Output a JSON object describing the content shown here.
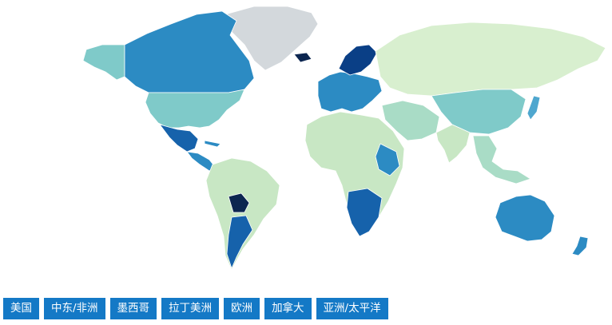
{
  "map": {
    "palette": {
      "lightest": "#d8efcf",
      "light": "#c8e7c4",
      "mint": "#a9dcc6",
      "teal": "#7fcac9",
      "mid_blue": "#4fa7cf",
      "blue": "#2c8bc3",
      "dark_blue": "#1662ab",
      "navy": "#0a3f86",
      "darkest": "#0c2650",
      "no_data": "#d3d8dc"
    },
    "regions": [
      {
        "name": "alaska-western-canada",
        "color": "#7fcac9"
      },
      {
        "name": "canada",
        "color": "#2c8bc3"
      },
      {
        "name": "greenland",
        "color": "#d3d8dc"
      },
      {
        "name": "usa",
        "color": "#7fcac9"
      },
      {
        "name": "mexico",
        "color": "#1662ab"
      },
      {
        "name": "central-america",
        "color": "#2c8bc3"
      },
      {
        "name": "south-america",
        "color": "#c8e7c4"
      },
      {
        "name": "bolivia",
        "color": "#0c2650"
      },
      {
        "name": "argentina",
        "color": "#1662ab"
      },
      {
        "name": "europe",
        "color": "#2c8bc3"
      },
      {
        "name": "scandinavia",
        "color": "#0a3f86"
      },
      {
        "name": "iceland",
        "color": "#0c2650"
      },
      {
        "name": "russia",
        "color": "#d8efcf"
      },
      {
        "name": "africa",
        "color": "#c8e7c4"
      },
      {
        "name": "east-africa",
        "color": "#2c8bc3"
      },
      {
        "name": "southern-africa",
        "color": "#1662ab"
      },
      {
        "name": "middle-east",
        "color": "#a9dcc6"
      },
      {
        "name": "china",
        "color": "#7fcac9"
      },
      {
        "name": "india",
        "color": "#c8e7c4"
      },
      {
        "name": "southeast-asia",
        "color": "#a9dcc6"
      },
      {
        "name": "japan",
        "color": "#4fa7cf"
      },
      {
        "name": "australia",
        "color": "#2c8bc3"
      },
      {
        "name": "new-zealand",
        "color": "#2c8bc3"
      }
    ]
  },
  "tabs": [
    "美国",
    "中东/非洲",
    "墨西哥",
    "拉丁美洲",
    "欧洲",
    "加拿大",
    "亚洲/太平洋"
  ]
}
